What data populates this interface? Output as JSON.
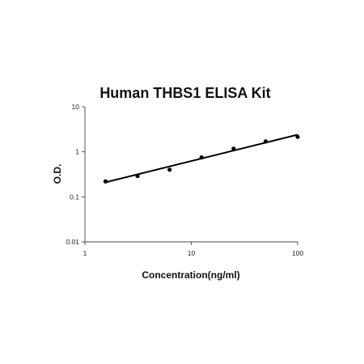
{
  "chart_data": {
    "type": "scatter",
    "title": "Human THBS1 ELISA Kit",
    "xlabel": "Concentration(ng/ml)",
    "ylabel": "O.D.",
    "x_scale": "log",
    "y_scale": "log",
    "xlim": [
      1,
      100
    ],
    "ylim": [
      0.01,
      10
    ],
    "x_ticks": [
      "1",
      "10",
      "100"
    ],
    "y_ticks": [
      "0.01",
      "0.1",
      "1",
      "10"
    ],
    "grid": false,
    "legend": "none",
    "series": [
      {
        "x": [
          1.5625,
          3.125,
          6.25,
          12.5,
          25,
          50,
          100
        ],
        "y": [
          0.22,
          0.29,
          0.4,
          0.75,
          1.17,
          1.7,
          2.15
        ]
      }
    ],
    "trendline": {
      "type": "power",
      "from": [
        1.5625,
        0.21
      ],
      "to": [
        100,
        2.4
      ]
    },
    "colors": {
      "points": "#000000",
      "line": "#000000",
      "axes": "#444444"
    }
  }
}
